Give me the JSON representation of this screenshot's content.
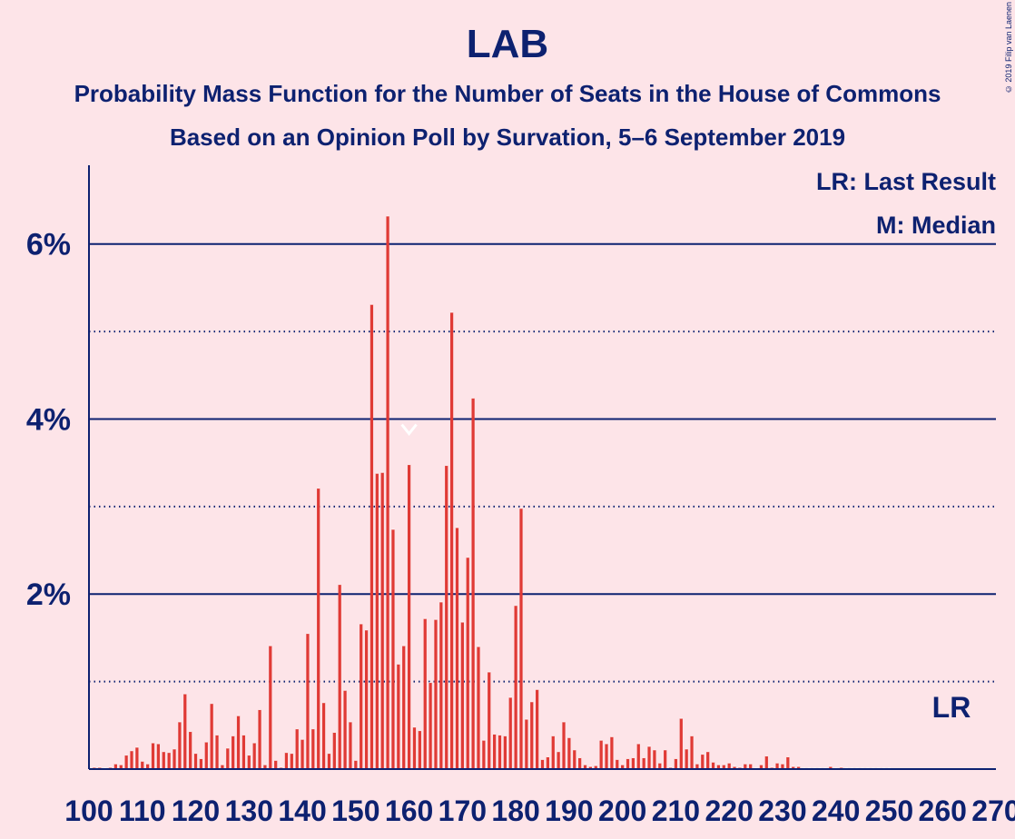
{
  "chart_data": {
    "type": "bar",
    "title": "LAB",
    "subtitle_lines": [
      "Probability Mass Function for the Number of Seats in the House of Commons",
      "Based on an Opinion Poll by Survation, 5–6 September 2019"
    ],
    "copyright": "© 2019 Filip van Laenen",
    "legend": [
      "LR: Last Result",
      "M: Median"
    ],
    "legend_placement": "top-right",
    "lr_marker_label": "LR",
    "median_marker_label": "M",
    "x_min": 101,
    "x_step": 1,
    "xlim": [
      100,
      270
    ],
    "x_ticks": [
      100,
      110,
      120,
      130,
      140,
      150,
      160,
      170,
      180,
      190,
      200,
      210,
      220,
      230,
      240,
      250,
      260,
      270
    ],
    "ylim": [
      0,
      6.9
    ],
    "y_ticks": [
      {
        "value": 2,
        "label": "2%"
      },
      {
        "value": 4,
        "label": "4%"
      },
      {
        "value": 6,
        "label": "6%"
      }
    ],
    "solid_gridlines": [
      2,
      4,
      6
    ],
    "dotted_gridlines": [
      1,
      3,
      5
    ],
    "median_seat": 160,
    "last_result_seat": 262,
    "values": [
      0.02,
      0.02,
      0.01,
      0.02,
      0.06,
      0.05,
      0.16,
      0.21,
      0.25,
      0.09,
      0.06,
      0.3,
      0.29,
      0.2,
      0.19,
      0.23,
      0.54,
      0.86,
      0.43,
      0.18,
      0.12,
      0.31,
      0.75,
      0.39,
      0.05,
      0.24,
      0.38,
      0.61,
      0.39,
      0.16,
      0.3,
      0.68,
      0.05,
      1.41,
      0.1,
      0.02,
      0.19,
      0.18,
      0.46,
      0.34,
      1.55,
      0.46,
      3.21,
      0.76,
      0.18,
      0.42,
      2.11,
      0.9,
      0.54,
      0.1,
      1.66,
      1.59,
      5.31,
      3.38,
      3.39,
      6.32,
      2.74,
      1.2,
      1.41,
      3.48,
      0.48,
      0.44,
      1.72,
      0.99,
      1.71,
      1.91,
      3.47,
      5.22,
      2.76,
      1.68,
      2.42,
      4.24,
      1.4,
      0.33,
      1.11,
      0.4,
      0.39,
      0.38,
      0.82,
      1.87,
      2.98,
      0.57,
      0.77,
      0.91,
      0.11,
      0.14,
      0.38,
      0.2,
      0.54,
      0.36,
      0.22,
      0.13,
      0.05,
      0.03,
      0.04,
      0.33,
      0.29,
      0.37,
      0.11,
      0.05,
      0.12,
      0.13,
      0.29,
      0.13,
      0.26,
      0.22,
      0.07,
      0.22,
      0.02,
      0.12,
      0.58,
      0.23,
      0.38,
      0.06,
      0.17,
      0.2,
      0.08,
      0.05,
      0.05,
      0.07,
      0.03,
      0.02,
      0.06,
      0.06,
      0.01,
      0.05,
      0.15,
      0.02,
      0.07,
      0.06,
      0.14,
      0.03,
      0.03,
      0.01,
      0.01,
      0.01,
      0.01,
      0.01,
      0.03,
      0.01,
      0.02,
      0.01,
      0.01,
      0.01,
      0.01,
      0.01,
      0.01,
      0.01,
      0.01,
      0.01
    ]
  }
}
